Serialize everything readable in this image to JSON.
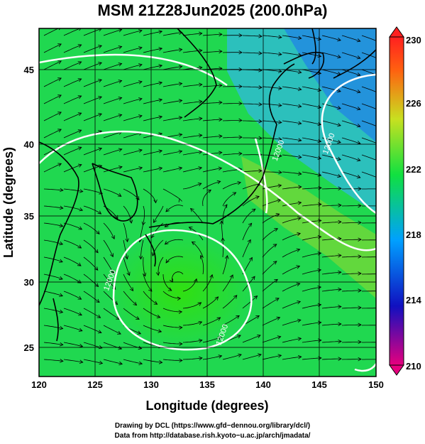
{
  "title": "MSM 21Z28Jun2025 (200.0hPa)",
  "chart_data": {
    "type": "heatmap",
    "title": "MSM 21Z28Jun2025 (200.0hPa)",
    "xlabel": "Longitude (degrees)",
    "ylabel": "Latitude  (degrees)",
    "xlim": [
      120,
      150
    ],
    "ylim": [
      22.5,
      48
    ],
    "x_ticks": [
      "120",
      "125",
      "130",
      "135",
      "140",
      "145",
      "150"
    ],
    "y_ticks": [
      "25",
      "30",
      "35",
      "40",
      "45"
    ],
    "colorbar": {
      "min": 210,
      "max": 230,
      "labels": [
        "230",
        "226",
        "222",
        "218",
        "214",
        "210"
      ],
      "colors": [
        "#e6007e",
        "#1010c0",
        "#00a0ff",
        "#10e040",
        "#c8e020",
        "#ff6010",
        "#ff2020"
      ]
    },
    "contour_labels": [
      {
        "text": "12000",
        "lon": 141.5,
        "lat": 39
      },
      {
        "text": "12000",
        "lon": 146,
        "lat": 39.5
      },
      {
        "text": "12000",
        "lon": 126.5,
        "lat": 29.5
      },
      {
        "text": "12000",
        "lon": 136.5,
        "lat": 25.5
      }
    ],
    "low_center": {
      "lon": 132.5,
      "lat": 29.5
    },
    "grid": true
  },
  "credits": {
    "line1": "Drawing by DCL (https://www.gfd−dennou.org/library/dcl/)",
    "line2": "Data from http://database.rish.kyoto−u.ac.jp/arch/jmadata/"
  }
}
